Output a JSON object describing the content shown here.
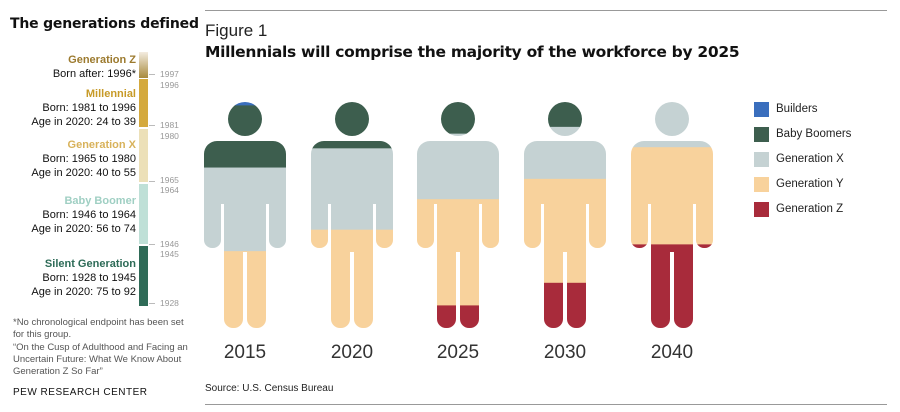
{
  "sidebar": {
    "title": "The generations defined",
    "generations": [
      {
        "name": "Generation Z",
        "lines": [
          "Born after: 1996*"
        ],
        "color": "#9c7a2e",
        "bar_color": "#a88a3d"
      },
      {
        "name": "Millennial",
        "lines": [
          "Born: 1981 to 1996",
          "Age in 2020: 24 to 39"
        ],
        "color": "#c79a27",
        "bar_color": "#d4a93d"
      },
      {
        "name": "Generation X",
        "lines": [
          "Born: 1965 to 1980",
          "Age in 2020: 40 to 55"
        ],
        "color": "#d8b25a",
        "bar_color": "#ece0b8"
      },
      {
        "name": "Baby Boomer",
        "lines": [
          "Born: 1946 to 1964",
          "Age in 2020: 56 to 74"
        ],
        "color": "#9fcfc3",
        "bar_color": "#bfe0d7"
      },
      {
        "name": "Silent Generation",
        "lines": [
          "Born: 1928 to 1945",
          "Age in 2020: 75 to 92"
        ],
        "color": "#2d6b57",
        "bar_color": "#2f6b57"
      }
    ],
    "years": [
      "1997",
      "1996",
      "1981",
      "1980",
      "1965",
      "1964",
      "1946",
      "1945",
      "1928"
    ],
    "footnotes": [
      "*No chronological endpoint has been set for this group.",
      "“On the Cusp of Adulthood and Facing an Uncertain Future: What We Know About Generation Z So Far”"
    ],
    "org": "PEW RESEARCH CENTER"
  },
  "figure": {
    "label": "Figure 1",
    "title": "Millennials will comprise the majority of the workforce by 2025",
    "source": "Source: U.S. Census Bureau"
  },
  "chart_data": {
    "type": "stacked-bar (pictogram)",
    "categories": [
      "2015",
      "2020",
      "2025",
      "2030",
      "2040"
    ],
    "stack_order": "top-to-bottom: Builders, Baby Boomers, Generation X, Generation Y, Generation Z",
    "series": [
      {
        "name": "Builders",
        "color": "#3a6ebd",
        "values": [
          1.5,
          0,
          0,
          0,
          0
        ]
      },
      {
        "name": "Baby Boomers",
        "color": "#3d5e4e",
        "values": [
          27.5,
          20.5,
          14,
          11,
          0
        ]
      },
      {
        "name": "Generation X",
        "color": "#c5d2d3",
        "values": [
          37,
          36,
          29,
          23,
          20
        ]
      },
      {
        "name": "Generation Y",
        "color": "#f8d29c",
        "values": [
          34,
          43.5,
          47,
          46,
          43
        ]
      },
      {
        "name": "Generation Z",
        "color": "#a82b3b",
        "values": [
          0,
          0,
          10,
          20,
          37
        ]
      }
    ],
    "ylim": [
      0,
      100
    ]
  }
}
